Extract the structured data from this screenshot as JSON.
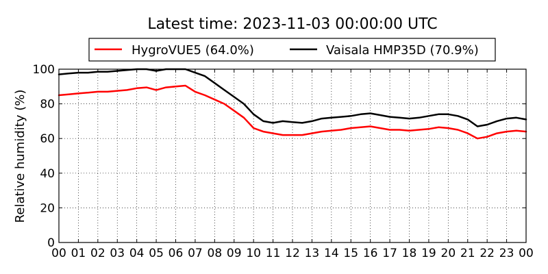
{
  "chart_data": {
    "type": "line",
    "title": "Latest time: 2023-11-03 00:00:00 UTC",
    "xlabel": "",
    "ylabel": "Relative humidity (%)",
    "xlim": [
      0,
      24
    ],
    "ylim": [
      0,
      100
    ],
    "x_unit": "hour of day (UTC)",
    "xticks": [
      0,
      1,
      2,
      3,
      4,
      5,
      6,
      7,
      8,
      9,
      10,
      11,
      12,
      13,
      14,
      15,
      16,
      17,
      18,
      19,
      20,
      21,
      22,
      23,
      24
    ],
    "xtick_labels": [
      "00",
      "01",
      "02",
      "03",
      "04",
      "05",
      "06",
      "07",
      "08",
      "09",
      "10",
      "11",
      "12",
      "13",
      "14",
      "15",
      "16",
      "17",
      "18",
      "19",
      "20",
      "21",
      "22",
      "23",
      "00"
    ],
    "yticks": [
      0,
      20,
      40,
      60,
      80,
      100
    ],
    "ytick_labels": [
      "0",
      "20",
      "40",
      "60",
      "80",
      "100"
    ],
    "grid": true,
    "legend": "top, above plot, two columns",
    "series": [
      {
        "name": "HygroVUE5 (64.0%)",
        "color": "#ff0000",
        "x": [
          0,
          0.5,
          1,
          1.5,
          2,
          2.5,
          3,
          3.5,
          4,
          4.5,
          5,
          5.5,
          6,
          6.5,
          7,
          7.5,
          8,
          8.5,
          9,
          9.5,
          10,
          10.5,
          11,
          11.5,
          12,
          12.5,
          13,
          13.5,
          14,
          14.5,
          15,
          15.5,
          16,
          16.5,
          17,
          17.5,
          18,
          18.5,
          19,
          19.5,
          20,
          20.5,
          21,
          21.5,
          22,
          22.5,
          23,
          23.5,
          24
        ],
        "y": [
          85,
          85.5,
          86,
          86.5,
          87,
          87,
          87.5,
          88,
          89,
          89.5,
          88,
          89.5,
          90,
          90.5,
          87,
          85,
          82.5,
          80,
          76,
          72,
          66,
          64,
          63,
          62,
          62,
          62,
          63,
          64,
          64.5,
          65,
          66,
          66.5,
          67,
          66,
          65,
          65,
          64.5,
          65,
          65.5,
          66.5,
          66,
          65,
          63,
          60,
          61,
          63,
          64,
          64.5,
          64
        ]
      },
      {
        "name": "Vaisala HMP35D (70.9%)",
        "color": "#000000",
        "x": [
          0,
          0.5,
          1,
          1.5,
          2,
          2.5,
          3,
          3.5,
          4,
          4.5,
          5,
          5.5,
          6,
          6.5,
          7,
          7.5,
          8,
          8.5,
          9,
          9.5,
          10,
          10.5,
          11,
          11.5,
          12,
          12.5,
          13,
          13.5,
          14,
          14.5,
          15,
          15.5,
          16,
          16.5,
          17,
          17.5,
          18,
          18.5,
          19,
          19.5,
          20,
          20.5,
          21,
          21.5,
          22,
          22.5,
          23,
          23.5,
          24
        ],
        "y": [
          97,
          97.5,
          98,
          98,
          98.5,
          98.5,
          99,
          99.5,
          100,
          100,
          99,
          100,
          100,
          100,
          98,
          96,
          92,
          88,
          84,
          80,
          74,
          70,
          69,
          70,
          69.5,
          69,
          70,
          71.5,
          72,
          72.5,
          73,
          74,
          74.5,
          73.5,
          72.5,
          72,
          71.5,
          72,
          73,
          74,
          74,
          73,
          71,
          67,
          68,
          70,
          71.5,
          72,
          71
        ]
      }
    ]
  }
}
